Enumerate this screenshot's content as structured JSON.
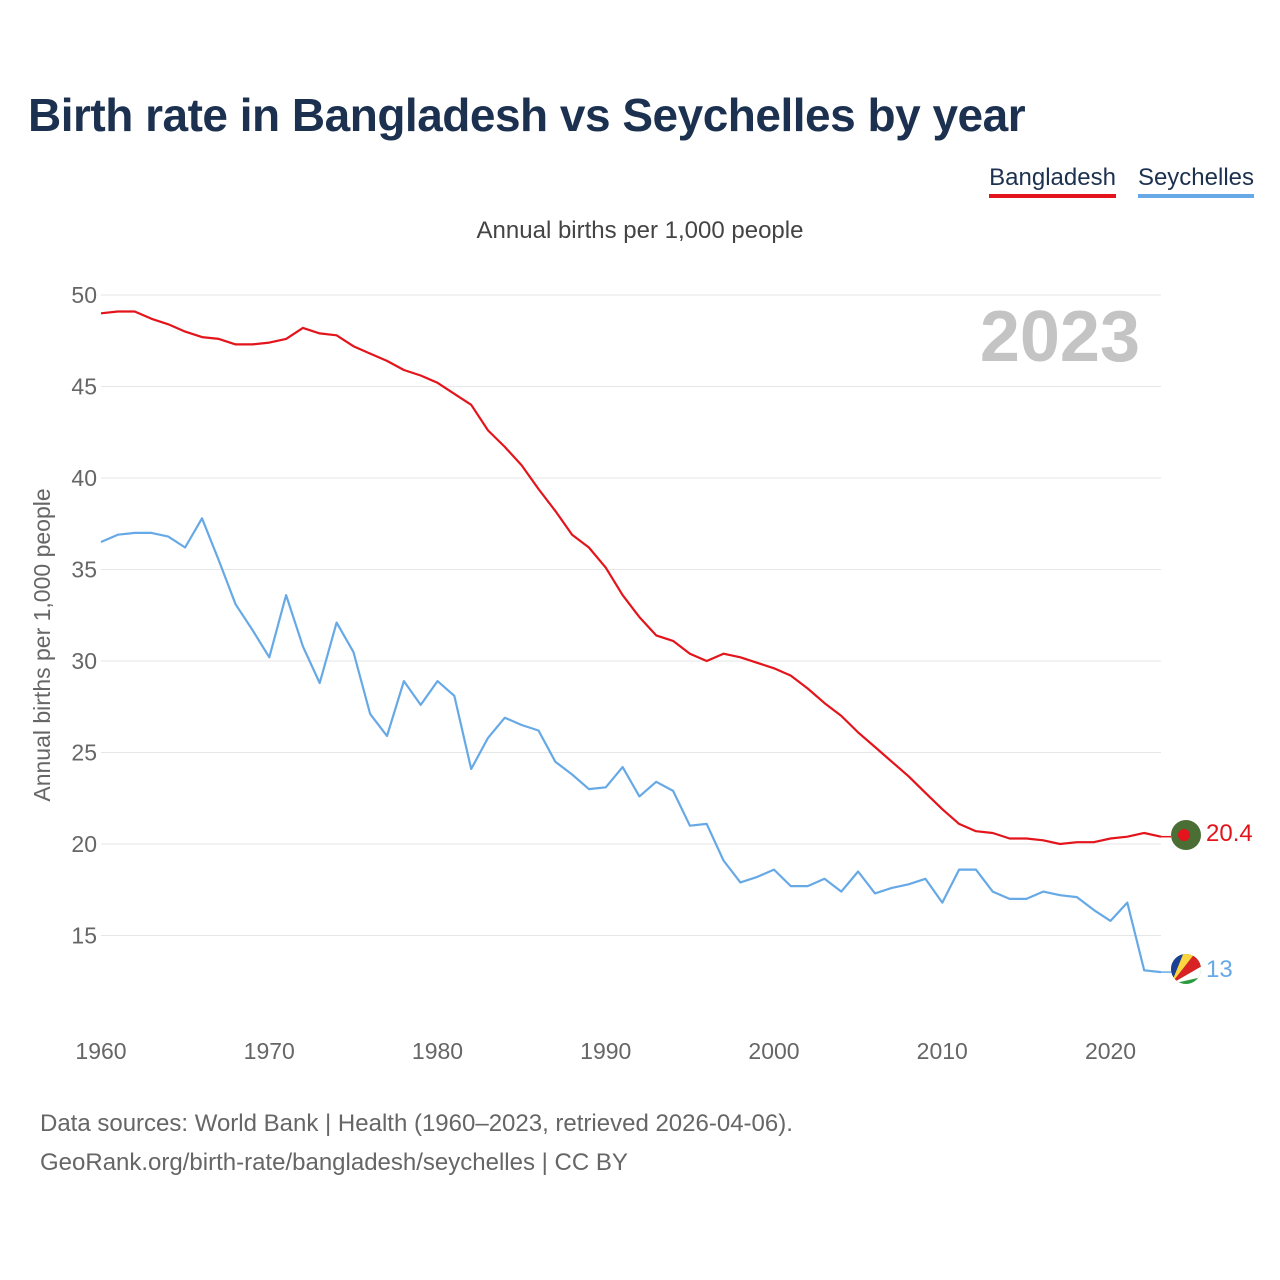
{
  "title": "Birth rate in Bangladesh vs Seychelles by year",
  "subtitle": "Annual births per 1,000 people",
  "legend": {
    "items": [
      {
        "label": "Bangladesh",
        "color": "#e3141b"
      },
      {
        "label": "Seychelles",
        "color": "#66a9e6"
      }
    ]
  },
  "footer": {
    "line1": "Data sources: World Bank | Health (1960–2023, retrieved 2026-04-06).",
    "line2": "GeoRank.org/birth-rate/bangladesh/seychelles | CC BY"
  },
  "chart_data": {
    "type": "line",
    "title": "Birth rate in Bangladesh vs Seychelles by year",
    "ylabel": "Annual births per 1,000 people",
    "xlabel": "",
    "year_label": "2023",
    "xlim": [
      1960,
      2023
    ],
    "ylim": [
      11,
      50
    ],
    "x_ticks": [
      1960,
      1970,
      1980,
      1990,
      2000,
      2010,
      2020
    ],
    "y_ticks": [
      15,
      20,
      25,
      30,
      35,
      40,
      45,
      50
    ],
    "grid": true,
    "x": [
      1960,
      1961,
      1962,
      1963,
      1964,
      1965,
      1966,
      1967,
      1968,
      1969,
      1970,
      1971,
      1972,
      1973,
      1974,
      1975,
      1976,
      1977,
      1978,
      1979,
      1980,
      1981,
      1982,
      1983,
      1984,
      1985,
      1986,
      1987,
      1988,
      1989,
      1990,
      1991,
      1992,
      1993,
      1994,
      1995,
      1996,
      1997,
      1998,
      1999,
      2000,
      2001,
      2002,
      2003,
      2004,
      2005,
      2006,
      2007,
      2008,
      2009,
      2010,
      2011,
      2012,
      2013,
      2014,
      2015,
      2016,
      2017,
      2018,
      2019,
      2020,
      2021,
      2022,
      2023
    ],
    "series": [
      {
        "name": "Bangladesh",
        "color": "#e3141b",
        "end_label": "20.4",
        "values": [
          49.0,
          49.1,
          49.1,
          48.7,
          48.4,
          48.0,
          47.7,
          47.6,
          47.3,
          47.3,
          47.4,
          47.6,
          48.2,
          47.9,
          47.8,
          47.2,
          46.8,
          46.4,
          45.9,
          45.6,
          45.2,
          44.6,
          44.0,
          42.6,
          41.7,
          40.7,
          39.4,
          38.2,
          36.9,
          36.2,
          35.1,
          33.6,
          32.4,
          31.4,
          31.1,
          30.4,
          30.0,
          30.4,
          30.2,
          29.9,
          29.6,
          29.2,
          28.5,
          27.7,
          27.0,
          26.1,
          25.3,
          24.5,
          23.7,
          22.8,
          21.9,
          21.1,
          20.7,
          20.6,
          20.3,
          20.3,
          20.2,
          20.0,
          20.1,
          20.1,
          20.3,
          20.4,
          20.6,
          20.4
        ]
      },
      {
        "name": "Seychelles",
        "color": "#66a9e6",
        "end_label": "13",
        "values": [
          36.5,
          36.9,
          37.0,
          37.0,
          36.8,
          36.2,
          37.8,
          35.5,
          33.1,
          31.7,
          30.2,
          33.6,
          30.8,
          28.8,
          32.1,
          30.5,
          27.1,
          25.9,
          28.9,
          27.6,
          28.9,
          28.1,
          24.1,
          25.8,
          26.9,
          26.5,
          26.2,
          24.5,
          23.8,
          23.0,
          23.1,
          24.2,
          22.6,
          23.4,
          22.9,
          21.0,
          21.1,
          19.1,
          17.9,
          18.2,
          18.6,
          17.7,
          17.7,
          18.1,
          17.4,
          18.5,
          17.3,
          17.6,
          17.8,
          18.1,
          16.8,
          18.6,
          18.6,
          17.4,
          17.0,
          17.0,
          17.4,
          17.2,
          17.1,
          16.4,
          15.8,
          16.8,
          13.1,
          13.0
        ]
      }
    ]
  }
}
